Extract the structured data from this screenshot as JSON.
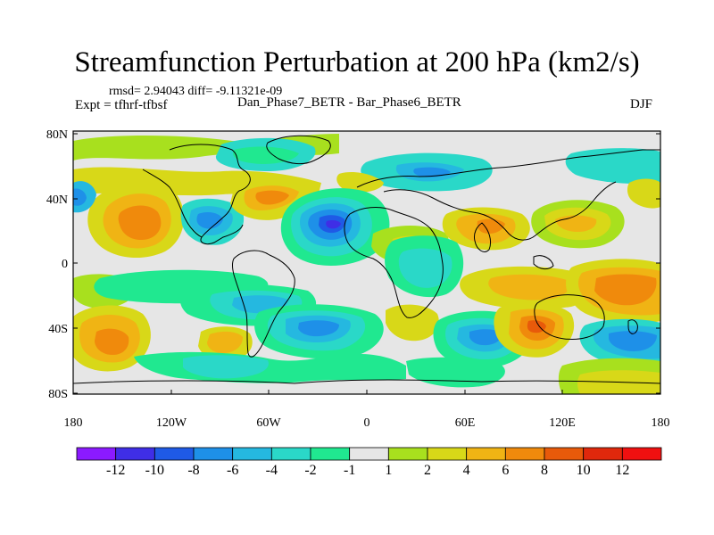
{
  "title": "Streamfunction Perturbation at 200 hPa (km2/s)",
  "stats": "rmsd= 2.94043 diff= -9.11321e-09",
  "experiment": "Expt = tfhrf-tfbsf",
  "case_label": "Dan_Phase7_BETR - Bar_Phase6_BETR",
  "season": "DJF",
  "lat_labels": [
    "80N",
    "40N",
    "0",
    "40S",
    "80S"
  ],
  "lon_labels": [
    "180",
    "120W",
    "60W",
    "0",
    "60E",
    "120E",
    "180"
  ],
  "colorbar": {
    "labels": [
      "-12",
      "-10",
      "-8",
      "-6",
      "-4",
      "-2",
      "-1",
      "1",
      "2",
      "4",
      "6",
      "8",
      "10",
      "12"
    ],
    "colors": [
      "#8b1aff",
      "#3f2ee6",
      "#1f5ae6",
      "#1e90e8",
      "#25b8e0",
      "#2ad8c8",
      "#20e890",
      "#e6e6e6",
      "#a8e01e",
      "#d8d818",
      "#f0b414",
      "#f08a0c",
      "#e85a0a",
      "#e0280c",
      "#f01010"
    ]
  }
}
